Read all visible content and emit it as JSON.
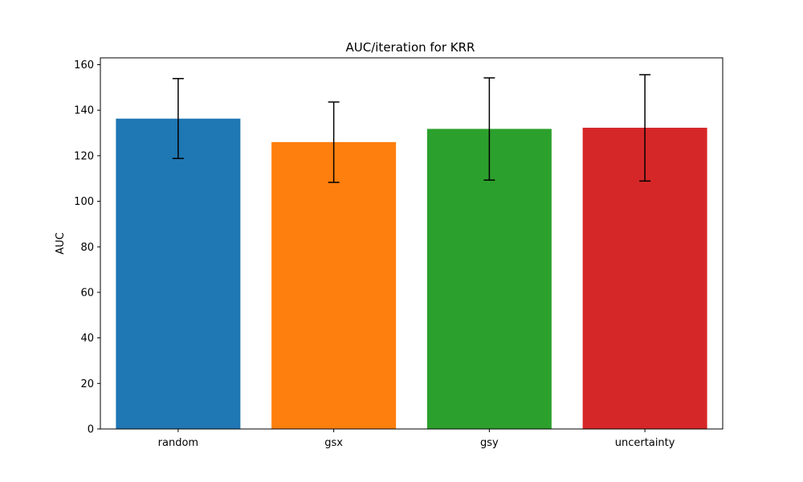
{
  "chart_data": {
    "type": "bar",
    "title": "AUC/iteration for KRR",
    "xlabel": "",
    "ylabel": "AUC",
    "categories": [
      "random",
      "gsx",
      "gsy",
      "uncertainty"
    ],
    "values": [
      136.3,
      126.0,
      131.8,
      132.3
    ],
    "error_low": [
      118.8,
      108.3,
      109.3,
      108.9
    ],
    "error_high": [
      153.9,
      143.6,
      154.2,
      155.6
    ],
    "colors": [
      "#1f77b4",
      "#ff7f0e",
      "#2ca02c",
      "#d62728"
    ],
    "ylim": [
      0,
      163
    ],
    "yticks": [
      0,
      20,
      40,
      60,
      80,
      100,
      120,
      140,
      160
    ],
    "grid": false,
    "legend": "none"
  }
}
